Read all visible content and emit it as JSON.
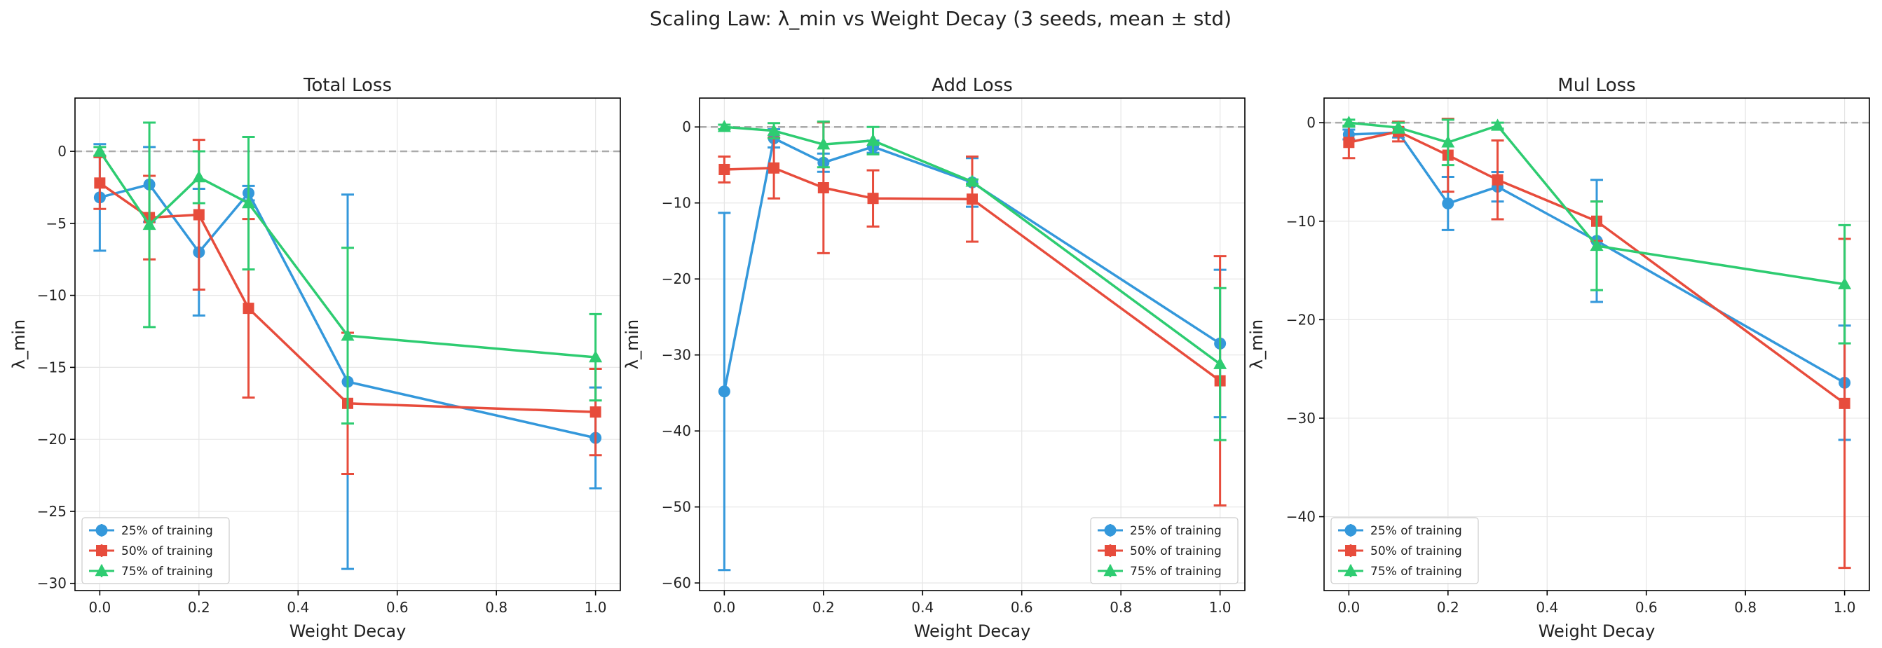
{
  "title": "Scaling Law: λ_min vs Weight Decay (3 seeds, mean ± std)",
  "colors": {
    "series_25": "#3498db",
    "series_50": "#e74c3c",
    "series_75": "#2ecc71",
    "grid": "#e6e6e6",
    "zero_line": "#aaaaaa",
    "axis": "#000000"
  },
  "chart_data": [
    {
      "type": "line",
      "title": "Total Loss",
      "xlabel": "Weight Decay",
      "ylabel": "λ_min",
      "xlim": [
        -0.05,
        1.05
      ],
      "ylim": [
        -30.5,
        3.7
      ],
      "xticks": [
        0.0,
        0.2,
        0.4,
        0.6,
        0.8,
        1.0
      ],
      "xtick_labels": [
        "0.0",
        "0.2",
        "0.4",
        "0.6",
        "0.8",
        "1.0"
      ],
      "yticks": [
        0,
        -5,
        -10,
        -15,
        -20,
        -25,
        -30
      ],
      "ytick_labels": [
        "0",
        "−5",
        "−10",
        "−15",
        "−20",
        "−25",
        "−30"
      ],
      "grid": true,
      "reference_line": 0,
      "legend_position": "lower left",
      "x": [
        0.0,
        0.1,
        0.2,
        0.3,
        0.5,
        1.0
      ],
      "series": [
        {
          "name": "25% of training",
          "marker": "circle",
          "values": [
            -3.2,
            -2.3,
            -7.0,
            -2.9,
            -16.0,
            -19.9
          ],
          "errors": [
            3.7,
            2.6,
            4.4,
            0.5,
            13.0,
            3.5
          ]
        },
        {
          "name": "50% of training",
          "marker": "square",
          "values": [
            -2.2,
            -4.6,
            -4.4,
            -10.9,
            -17.5,
            -18.1
          ],
          "errors": [
            1.8,
            2.9,
            5.2,
            6.2,
            4.9,
            3.0
          ]
        },
        {
          "name": "75% of training",
          "marker": "triangle",
          "values": [
            0.0,
            -5.1,
            -1.8,
            -3.6,
            -12.8,
            -14.3
          ],
          "errors": [
            0.3,
            7.1,
            1.8,
            4.6,
            6.1,
            3.0
          ]
        }
      ]
    },
    {
      "type": "line",
      "title": "Add Loss",
      "xlabel": "Weight Decay",
      "ylabel": "λ_min",
      "xlim": [
        -0.05,
        1.05
      ],
      "ylim": [
        -61.0,
        3.8
      ],
      "xticks": [
        0.0,
        0.2,
        0.4,
        0.6,
        0.8,
        1.0
      ],
      "xtick_labels": [
        "0.0",
        "0.2",
        "0.4",
        "0.6",
        "0.8",
        "1.0"
      ],
      "yticks": [
        0,
        -10,
        -20,
        -30,
        -40,
        -50,
        -60
      ],
      "ytick_labels": [
        "0",
        "−10",
        "−20",
        "−30",
        "−40",
        "−50",
        "−60"
      ],
      "grid": true,
      "reference_line": 0,
      "legend_position": "lower right",
      "x": [
        0.0,
        0.1,
        0.2,
        0.3,
        0.5,
        1.0
      ],
      "series": [
        {
          "name": "25% of training",
          "marker": "circle",
          "values": [
            -34.8,
            -1.5,
            -4.7,
            -2.6,
            -7.3,
            -28.5
          ],
          "errors": [
            23.5,
            1.2,
            1.2,
            0.8,
            3.2,
            9.7
          ]
        },
        {
          "name": "50% of training",
          "marker": "square",
          "values": [
            -5.6,
            -5.4,
            -8.0,
            -9.4,
            -9.5,
            -33.4
          ],
          "errors": [
            1.7,
            4.0,
            8.6,
            3.7,
            5.6,
            16.4
          ]
        },
        {
          "name": "75% of training",
          "marker": "triangle",
          "values": [
            0.0,
            -0.5,
            -2.3,
            -1.8,
            -7.2,
            -31.2
          ],
          "errors": [
            0.3,
            1.0,
            3.0,
            1.8,
            0.3,
            10.0
          ]
        }
      ]
    },
    {
      "type": "line",
      "title": "Mul Loss",
      "xlabel": "Weight Decay",
      "ylabel": "λ_min",
      "xlim": [
        -0.05,
        1.05
      ],
      "ylim": [
        -47.5,
        2.5
      ],
      "xticks": [
        0.0,
        0.2,
        0.4,
        0.6,
        0.8,
        1.0
      ],
      "xtick_labels": [
        "0.0",
        "0.2",
        "0.4",
        "0.6",
        "0.8",
        "1.0"
      ],
      "yticks": [
        0,
        -10,
        -20,
        -30,
        -40
      ],
      "ytick_labels": [
        "0",
        "−10",
        "−20",
        "−30",
        "−40"
      ],
      "grid": true,
      "reference_line": 0,
      "legend_position": "lower left",
      "x": [
        0.0,
        0.1,
        0.2,
        0.3,
        0.5,
        1.0
      ],
      "series": [
        {
          "name": "25% of training",
          "marker": "circle",
          "values": [
            -1.2,
            -1.0,
            -8.2,
            -6.5,
            -12.0,
            -26.4
          ],
          "errors": [
            0.5,
            0.5,
            2.7,
            1.5,
            6.2,
            5.8
          ]
        },
        {
          "name": "50% of training",
          "marker": "square",
          "values": [
            -2.0,
            -0.9,
            -3.3,
            -5.8,
            -10.0,
            -28.5
          ],
          "errors": [
            1.6,
            1.0,
            3.7,
            4.0,
            2.0,
            16.7
          ]
        },
        {
          "name": "75% of training",
          "marker": "triangle",
          "values": [
            0.0,
            -0.5,
            -2.0,
            -0.3,
            -12.5,
            -16.4
          ],
          "errors": [
            0.3,
            0.5,
            2.3,
            0.3,
            4.5,
            6.0
          ]
        }
      ]
    }
  ]
}
